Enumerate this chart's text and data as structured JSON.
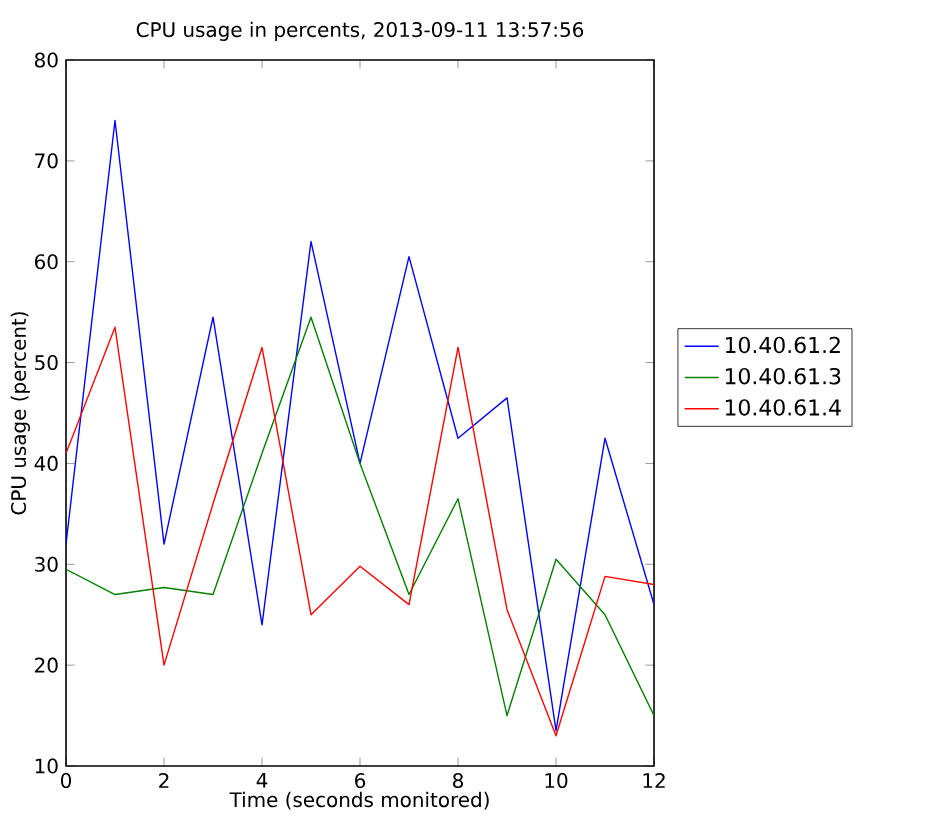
{
  "chart_data": {
    "type": "line",
    "title": "CPU usage in percents, 2013-09-11 13:57:56",
    "xlabel": "Time (seconds monitored)",
    "ylabel": "CPU usage (percent)",
    "x": [
      0,
      1,
      2,
      3,
      4,
      5,
      6,
      7,
      8,
      9,
      10,
      11,
      12
    ],
    "series": [
      {
        "name": "10.40.61.2",
        "color": "#0000ff",
        "values": [
          32,
          74,
          32,
          54.5,
          24,
          62,
          40,
          60.5,
          42.5,
          46.5,
          13.5,
          42.5,
          26
        ]
      },
      {
        "name": "10.40.61.3",
        "color": "#008000",
        "values": [
          29.5,
          27,
          27.7,
          27,
          41,
          54.5,
          40,
          27,
          36.5,
          15,
          30.5,
          25,
          15
        ]
      },
      {
        "name": "10.40.61.4",
        "color": "#ff0000",
        "values": [
          41,
          53.5,
          20,
          36,
          51.5,
          25,
          29.8,
          26,
          51.5,
          25.5,
          13,
          28.8,
          28
        ]
      }
    ],
    "xlim": [
      0,
      12
    ],
    "ylim": [
      10,
      80
    ],
    "xticks": [
      0,
      2,
      4,
      6,
      8,
      10,
      12
    ],
    "yticks": [
      10,
      20,
      30,
      40,
      50,
      60,
      70,
      80
    ],
    "grid": false,
    "legend": "right",
    "marker": "none",
    "line_style": "solid"
  }
}
